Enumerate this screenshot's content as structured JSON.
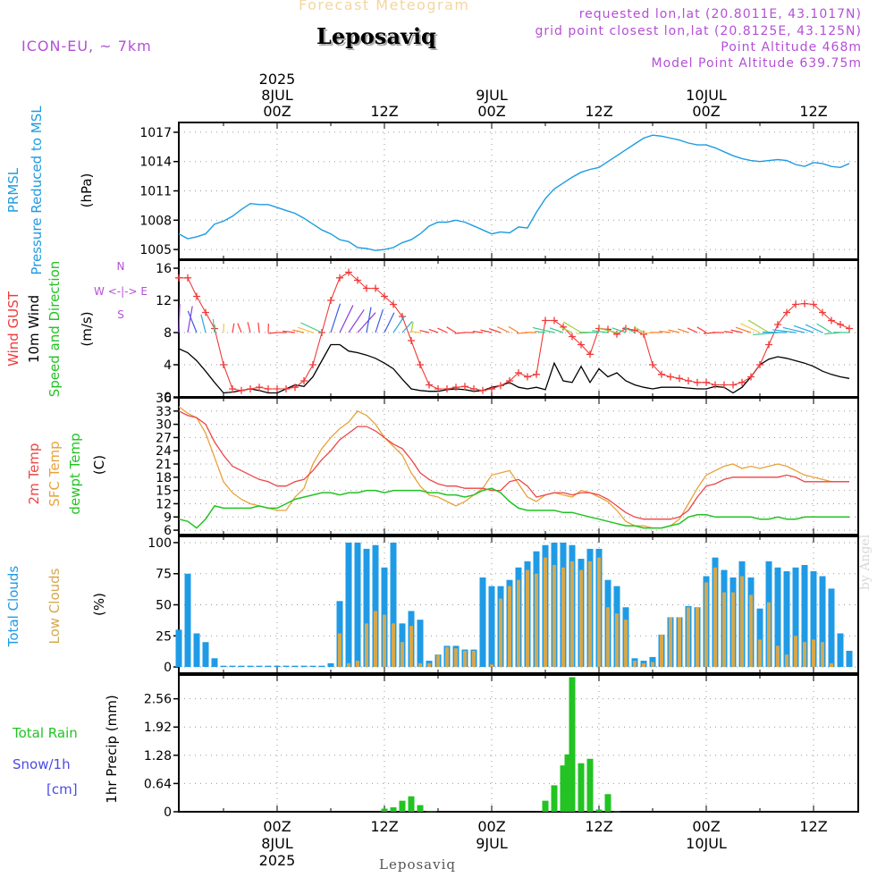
{
  "header": {
    "title_sub": "Forecast Meteogram",
    "title": "Leposaviq",
    "model": "ICON-EU, ~ 7km",
    "requested": "requested lon,lat (20.8011E, 43.1017N)",
    "gridpoint": "grid point closest lon,lat (20.8125E, 43.125N)",
    "point_alt": "Point Altitude 468m",
    "model_alt": "Model Point Altitude 639.75m",
    "footer": "Leposaviq",
    "signature": "by Angel"
  },
  "colors": {
    "pressure": "#1e9be0",
    "wind10m": "#000000",
    "gust": "#f03a3a",
    "temp2m": "#ec4646",
    "sfctemp": "#e8a23a",
    "dewpt": "#22c322",
    "total_clouds": "#1f9be6",
    "low_clouds": "#d4a84e",
    "rain": "#22c322",
    "snow": "#4a4ae8",
    "axis_label_purple": "#b44fd6",
    "grid": "#999999"
  },
  "time_axis": {
    "top_labels": [
      {
        "h": 0,
        "lines": [
          "2025",
          "8JUL",
          "00Z"
        ]
      },
      {
        "h": 12,
        "lines": [
          "12Z"
        ]
      },
      {
        "h": 24,
        "lines": [
          "9JUL",
          "00Z"
        ]
      },
      {
        "h": 36,
        "lines": [
          "12Z"
        ]
      },
      {
        "h": 48,
        "lines": [
          "10JUL",
          "00Z"
        ]
      },
      {
        "h": 60,
        "lines": [
          "12Z"
        ]
      }
    ],
    "bottom_labels": [
      {
        "h": 0,
        "lines": [
          "00Z",
          "8JUL",
          "2025"
        ]
      },
      {
        "h": 12,
        "lines": [
          "12Z"
        ]
      },
      {
        "h": 24,
        "lines": [
          "00Z",
          "9JUL"
        ]
      },
      {
        "h": 36,
        "lines": [
          "12Z"
        ]
      },
      {
        "h": 48,
        "lines": [
          "00Z",
          "10JUL"
        ]
      },
      {
        "h": 60,
        "lines": [
          "12Z"
        ]
      }
    ],
    "range_hours": [
      -11,
      65
    ]
  },
  "panels": {
    "pressure": {
      "labels": [
        "PRMSL",
        "Pressure Reduced to MSL"
      ],
      "unit": "(hPa)"
    },
    "wind": {
      "labels": [
        "Wind GUST",
        "10m Wind",
        "Speed and Direction"
      ],
      "unit": "(m/s)",
      "compass": [
        "N",
        "W <-|-> E",
        "S"
      ]
    },
    "temp": {
      "labels": [
        "2m Temp",
        "SFC Temp",
        "dewpt Temp"
      ],
      "unit": "(C)"
    },
    "clouds": {
      "labels": [
        "Total Clouds",
        "Low Clouds"
      ],
      "unit": "(%)"
    },
    "precip": {
      "labels": [
        "Total  Rain",
        "Snow/1h",
        "[cm]"
      ],
      "unit": "1hr Precip (mm)"
    }
  },
  "chart_data": [
    {
      "type": "line",
      "title": "PRMSL Pressure Reduced to MSL",
      "ylabel": "(hPa)",
      "ylim": [
        1004,
        1018
      ],
      "yticks": [
        1005,
        1008,
        1011,
        1014,
        1017
      ],
      "x": [
        -11,
        -10,
        -9,
        -8,
        -7,
        -6,
        -5,
        -4,
        -3,
        -2,
        -1,
        0,
        1,
        2,
        3,
        4,
        5,
        6,
        7,
        8,
        9,
        10,
        11,
        12,
        13,
        14,
        15,
        16,
        17,
        18,
        19,
        20,
        21,
        22,
        23,
        24,
        25,
        26,
        27,
        28,
        29,
        30,
        31,
        32,
        33,
        34,
        35,
        36,
        37,
        38,
        39,
        40,
        41,
        42,
        43,
        44,
        45,
        46,
        47,
        48,
        49,
        50,
        51,
        52,
        53,
        54,
        55,
        56,
        57,
        58,
        59,
        60,
        61,
        62,
        63,
        64
      ],
      "series": [
        {
          "name": "PRMSL",
          "values": [
            1006.6,
            1006.1,
            1006.3,
            1006.6,
            1007.6,
            1007.9,
            1008.4,
            1009.1,
            1009.7,
            1009.6,
            1009.6,
            1009.3,
            1009.0,
            1008.7,
            1008.2,
            1007.6,
            1007.0,
            1006.6,
            1006.0,
            1005.8,
            1005.2,
            1005.1,
            1004.9,
            1005.0,
            1005.2,
            1005.7,
            1006.0,
            1006.6,
            1007.4,
            1007.8,
            1007.8,
            1008.0,
            1007.8,
            1007.4,
            1007.0,
            1006.6,
            1006.8,
            1006.7,
            1007.3,
            1007.2,
            1008.8,
            1010.2,
            1011.2,
            1011.8,
            1012.4,
            1012.9,
            1013.2,
            1013.4,
            1014.0,
            1014.6,
            1015.2,
            1015.8,
            1016.4,
            1016.7,
            1016.6,
            1016.4,
            1016.2,
            1015.9,
            1015.7,
            1015.7,
            1015.4,
            1015.0,
            1014.6,
            1014.3,
            1014.1,
            1014.0,
            1014.1,
            1014.2,
            1014.1,
            1013.7,
            1013.5,
            1013.9,
            1013.8,
            1013.5,
            1013.4,
            1013.8
          ]
        }
      ]
    },
    {
      "type": "line",
      "title": "Wind GUST / 10m Wind Speed and Direction",
      "ylabel": "(m/s)",
      "ylim": [
        0,
        17
      ],
      "yticks": [
        0,
        4,
        8,
        12,
        16
      ],
      "x": [
        -11,
        -10,
        -9,
        -8,
        -7,
        -6,
        -5,
        -4,
        -3,
        -2,
        -1,
        0,
        1,
        2,
        3,
        4,
        5,
        6,
        7,
        8,
        9,
        10,
        11,
        12,
        13,
        14,
        15,
        16,
        17,
        18,
        19,
        20,
        21,
        22,
        23,
        24,
        25,
        26,
        27,
        28,
        29,
        30,
        31,
        32,
        33,
        34,
        35,
        36,
        37,
        38,
        39,
        40,
        41,
        42,
        43,
        44,
        45,
        46,
        47,
        48,
        49,
        50,
        51,
        52,
        53,
        54,
        55,
        56,
        57,
        58,
        59,
        60,
        61,
        62,
        63,
        64
      ],
      "series": [
        {
          "name": "Wind GUST",
          "values": [
            14.8,
            14.8,
            12.5,
            10.5,
            8.5,
            4.0,
            1.0,
            0.8,
            1.0,
            1.2,
            1.0,
            1.0,
            1.0,
            1.2,
            2.0,
            4.0,
            8.0,
            12.0,
            14.8,
            15.5,
            14.5,
            13.5,
            13.5,
            12.5,
            11.5,
            10.0,
            7.0,
            4.0,
            1.5,
            1.0,
            1.0,
            1.2,
            1.3,
            1.0,
            0.8,
            1.0,
            1.4,
            2.0,
            3.0,
            2.5,
            2.8,
            9.5,
            9.5,
            8.7,
            7.5,
            6.5,
            5.3,
            8.5,
            8.4,
            7.8,
            8.5,
            8.3,
            7.8,
            4.0,
            2.8,
            2.5,
            2.3,
            2.0,
            1.8,
            1.8,
            1.5,
            1.5,
            1.5,
            1.8,
            2.5,
            4.0,
            6.5,
            9.0,
            10.5,
            11.5,
            11.6,
            11.5,
            10.5,
            9.5,
            9.0,
            8.5
          ]
        },
        {
          "name": "10m Wind",
          "values": [
            6.0,
            5.5,
            4.5,
            3.2,
            1.8,
            0.5,
            0.6,
            0.8,
            1.0,
            0.8,
            0.5,
            0.5,
            1.0,
            1.5,
            1.3,
            2.5,
            4.5,
            6.5,
            6.5,
            5.7,
            5.5,
            5.2,
            4.8,
            4.2,
            3.5,
            2.2,
            1.0,
            0.8,
            0.7,
            0.7,
            0.9,
            1.0,
            0.9,
            0.7,
            0.8,
            1.2,
            1.4,
            1.8,
            1.2,
            1.0,
            1.2,
            0.9,
            4.2,
            2.0,
            1.8,
            3.8,
            1.8,
            3.5,
            2.5,
            3.0,
            2.0,
            1.5,
            1.2,
            1.0,
            1.2,
            1.2,
            1.2,
            1.1,
            1.0,
            1.0,
            1.3,
            1.2,
            0.5,
            1.2,
            2.5,
            4.0,
            4.7,
            5.0,
            4.8,
            4.5,
            4.2,
            3.8,
            3.2,
            2.8,
            2.5,
            2.3
          ]
        }
      ]
    },
    {
      "type": "line",
      "title": "2m Temp / SFC Temp / dewpt Temp",
      "ylabel": "(C)",
      "ylim": [
        5,
        36
      ],
      "yticks": [
        6,
        9,
        12,
        15,
        18,
        21,
        24,
        27,
        30,
        33,
        36
      ],
      "x": [
        -11,
        -10,
        -9,
        -8,
        -7,
        -6,
        -5,
        -4,
        -3,
        -2,
        -1,
        0,
        1,
        2,
        3,
        4,
        5,
        6,
        7,
        8,
        9,
        10,
        11,
        12,
        13,
        14,
        15,
        16,
        17,
        18,
        19,
        20,
        21,
        22,
        23,
        24,
        25,
        26,
        27,
        28,
        29,
        30,
        31,
        32,
        33,
        34,
        35,
        36,
        37,
        38,
        39,
        40,
        41,
        42,
        43,
        44,
        45,
        46,
        47,
        48,
        49,
        50,
        51,
        52,
        53,
        54,
        55,
        56,
        57,
        58,
        59,
        60,
        61,
        62,
        63,
        64
      ],
      "series": [
        {
          "name": "2m Temp",
          "values": [
            33.0,
            32.0,
            31.5,
            30.0,
            26.0,
            23.0,
            20.5,
            19.5,
            18.5,
            17.5,
            17.0,
            16.0,
            16.0,
            17.0,
            17.5,
            19.5,
            22.0,
            24.0,
            26.5,
            28.0,
            29.5,
            29.5,
            28.5,
            27.0,
            25.5,
            24.5,
            22.0,
            19.0,
            17.5,
            16.5,
            16.0,
            16.0,
            15.5,
            15.5,
            15.5,
            15.0,
            15.0,
            17.0,
            17.5,
            16.0,
            13.5,
            14.0,
            14.5,
            14.5,
            14.0,
            14.5,
            14.5,
            14.0,
            13.0,
            11.5,
            10.0,
            9.0,
            8.5,
            8.5,
            8.5,
            8.5,
            9.0,
            10.5,
            13.5,
            16.0,
            16.5,
            17.5,
            18.0,
            18.0,
            18.0,
            18.0,
            18.0,
            18.0,
            18.5,
            18.0,
            17.0,
            17.0,
            17.0,
            17.0,
            17.0,
            17.0
          ]
        },
        {
          "name": "SFC Temp",
          "values": [
            34.0,
            32.5,
            31.5,
            28.0,
            22.5,
            17.0,
            14.5,
            13.0,
            12.0,
            11.5,
            11.0,
            10.5,
            10.5,
            13.5,
            15.5,
            21.0,
            24.5,
            27.0,
            29.0,
            30.5,
            33.0,
            32.0,
            30.0,
            27.0,
            25.0,
            23.0,
            19.0,
            16.0,
            14.0,
            13.5,
            12.5,
            11.5,
            12.5,
            14.0,
            15.5,
            18.5,
            19.0,
            19.5,
            16.5,
            13.5,
            12.5,
            14.0,
            14.5,
            14.0,
            13.5,
            15.0,
            14.5,
            13.5,
            12.5,
            10.5,
            8.0,
            7.0,
            7.0,
            6.5,
            6.5,
            7.0,
            8.5,
            12.0,
            15.5,
            18.5,
            19.5,
            20.5,
            21.0,
            20.0,
            20.5,
            20.0,
            20.5,
            21.0,
            20.5,
            19.5,
            18.5,
            18.0,
            17.5,
            17.0,
            17.0,
            17.0
          ]
        },
        {
          "name": "dewpt Temp",
          "values": [
            8.5,
            8.0,
            6.5,
            8.5,
            11.5,
            11.0,
            11.0,
            11.0,
            11.0,
            11.5,
            11.0,
            11.0,
            12.0,
            13.0,
            13.5,
            14.0,
            14.5,
            14.5,
            14.0,
            14.5,
            14.5,
            15.0,
            15.0,
            14.5,
            15.0,
            15.0,
            15.0,
            15.0,
            14.5,
            14.5,
            14.0,
            14.0,
            13.5,
            14.0,
            15.0,
            15.5,
            14.5,
            12.5,
            11.0,
            10.5,
            10.5,
            10.5,
            10.5,
            10.0,
            10.0,
            9.5,
            9.0,
            8.5,
            8.0,
            7.5,
            7.0,
            7.0,
            6.5,
            6.5,
            6.5,
            7.0,
            7.5,
            9.0,
            9.5,
            9.5,
            9.0,
            9.0,
            9.0,
            9.0,
            9.0,
            8.5,
            8.5,
            9.0,
            8.5,
            8.5,
            9.0,
            9.0,
            9.0,
            9.0,
            9.0,
            9.0
          ]
        }
      ]
    },
    {
      "type": "bar",
      "title": "Total Clouds / Low Clouds",
      "ylabel": "(%)",
      "ylim": [
        -5,
        105
      ],
      "yticks": [
        0,
        25,
        50,
        75,
        100
      ],
      "x": [
        -11,
        -10,
        -9,
        -8,
        -7,
        -6,
        -5,
        -4,
        -3,
        -2,
        -1,
        0,
        1,
        2,
        3,
        4,
        5,
        6,
        7,
        8,
        9,
        10,
        11,
        12,
        13,
        14,
        15,
        16,
        17,
        18,
        19,
        20,
        21,
        22,
        23,
        24,
        25,
        26,
        27,
        28,
        29,
        30,
        31,
        32,
        33,
        34,
        35,
        36,
        37,
        38,
        39,
        40,
        41,
        42,
        43,
        44,
        45,
        46,
        47,
        48,
        49,
        50,
        51,
        52,
        53,
        54,
        55,
        56,
        57,
        58,
        59,
        60,
        61,
        62,
        63,
        64
      ],
      "series": [
        {
          "name": "Total Clouds",
          "values": [
            30,
            75,
            27,
            20,
            7,
            1,
            1,
            1,
            1,
            1,
            1,
            1,
            1,
            1,
            1,
            1,
            1,
            3,
            53,
            100,
            100,
            95,
            98,
            80,
            100,
            35,
            45,
            38,
            5,
            10,
            17,
            17,
            14,
            14,
            72,
            65,
            65,
            70,
            80,
            85,
            93,
            98,
            100,
            100,
            98,
            87,
            95,
            95,
            70,
            65,
            48,
            7,
            5,
            8,
            26,
            40,
            40,
            49,
            48,
            73,
            88,
            78,
            72,
            85,
            72,
            47,
            85,
            80,
            77,
            80,
            82,
            77,
            73,
            63,
            27,
            13
          ]
        },
        {
          "name": "Low Clouds",
          "values": [
            0,
            0,
            0,
            0,
            0,
            0,
            0,
            0,
            0,
            0,
            0,
            0,
            0,
            0,
            0,
            0,
            0,
            0,
            27,
            3,
            5,
            35,
            45,
            42,
            35,
            20,
            33,
            3,
            3,
            10,
            16,
            15,
            13,
            13,
            0,
            2,
            55,
            65,
            70,
            78,
            75,
            88,
            82,
            80,
            85,
            78,
            85,
            88,
            48,
            43,
            38,
            5,
            3,
            4,
            26,
            40,
            40,
            48,
            48,
            68,
            80,
            60,
            60,
            73,
            58,
            22,
            52,
            17,
            10,
            25,
            20,
            22,
            20,
            3,
            0,
            0
          ]
        }
      ]
    },
    {
      "type": "bar",
      "title": "1hr Precip (mm)",
      "ylabel": "1hr Precip (mm)",
      "ylim": [
        0,
        3.1
      ],
      "yticks": [
        0,
        0.64,
        1.28,
        1.92,
        2.56
      ],
      "x": [
        12,
        13,
        14,
        15,
        16,
        17,
        17.5,
        30,
        31,
        32,
        32.5,
        33,
        34,
        35,
        36,
        37,
        38
      ],
      "series": [
        {
          "name": "Total Rain",
          "values": [
            0.07,
            0.1,
            0.25,
            0.35,
            0.15,
            0.01,
            0.01,
            0.25,
            0.6,
            1.05,
            1.3,
            3.05,
            1.1,
            1.2,
            0.05,
            0.4,
            0.01
          ]
        }
      ]
    }
  ]
}
